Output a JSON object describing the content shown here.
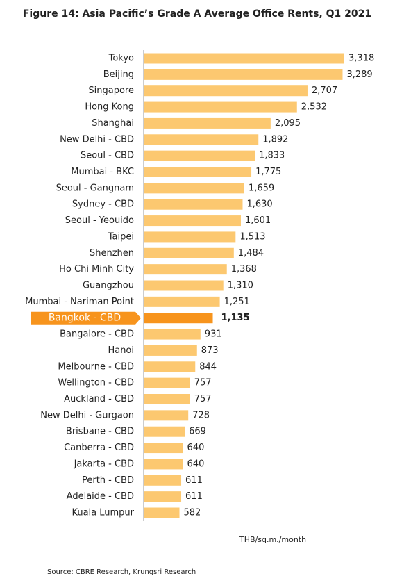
{
  "chart_data": {
    "type": "barh",
    "title": "Figure 14: Asia Pacific’s Grade A Average Office Rents, Q1 2021",
    "categories": [
      "Tokyo",
      "Beijing",
      "Singapore",
      "Hong Kong",
      "Shanghai",
      "New Delhi - CBD",
      "Seoul - CBD",
      "Mumbai - BKC",
      "Seoul - Gangnam",
      "Sydney - CBD",
      "Seoul - Yeouido",
      "Taipei",
      "Shenzhen",
      "Ho Chi Minh City",
      "Guangzhou",
      "Mumbai - Nariman Point",
      "Bangkok - CBD",
      "Bangalore - CBD",
      "Hanoi",
      "Melbourne - CBD",
      "Wellington - CBD",
      "Auckland - CBD",
      "New Delhi - Gurgaon",
      "Brisbane - CBD",
      "Canberra - CBD",
      "Jakarta - CBD",
      "Perth - CBD",
      "Adelaide - CBD",
      "Kuala Lumpur"
    ],
    "values": [
      3318,
      3289,
      2707,
      2532,
      2095,
      1892,
      1833,
      1775,
      1659,
      1630,
      1601,
      1513,
      1484,
      1368,
      1310,
      1251,
      1135,
      931,
      873,
      844,
      757,
      757,
      728,
      669,
      640,
      640,
      611,
      611,
      582
    ],
    "value_labels": [
      "3,318",
      "3,289",
      "2,707",
      "2,532",
      "2,095",
      "1,892",
      "1,833",
      "1,775",
      "1,659",
      "1,630",
      "1,601",
      "1,513",
      "1,484",
      "1,368",
      "1,310",
      "1,251",
      "1,135",
      "931",
      "873",
      "844",
      "757",
      "757",
      "728",
      "669",
      "640",
      "640",
      "611",
      "611",
      "582"
    ],
    "color": "#fcc870",
    "colors": [
      "#fcc870",
      "#fcc870",
      "#fcc870",
      "#fcc870",
      "#fcc870",
      "#fcc870",
      "#fcc870",
      "#fcc870",
      "#fcc870",
      "#fcc870",
      "#fcc870",
      "#fcc870",
      "#fcc870",
      "#fcc870",
      "#fcc870",
      "#fcc870",
      "#f7941d",
      "#fcc870",
      "#fcc870",
      "#fcc870",
      "#fcc870",
      "#fcc870",
      "#fcc870",
      "#fcc870",
      "#fcc870",
      "#fcc870",
      "#fcc870",
      "#fcc870",
      "#fcc870"
    ],
    "unit_label": "THB/sq.m./month",
    "source": "Source: CBRE Research, Krungsri Research"
  }
}
